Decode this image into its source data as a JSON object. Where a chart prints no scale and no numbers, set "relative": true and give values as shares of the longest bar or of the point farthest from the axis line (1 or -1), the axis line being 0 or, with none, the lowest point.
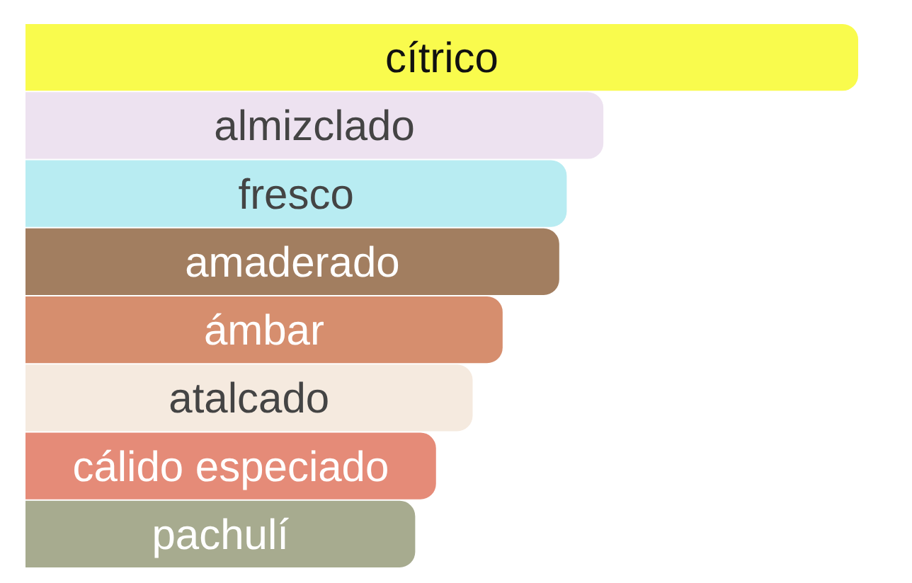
{
  "chart_data": {
    "type": "bar",
    "orientation": "horizontal",
    "relative": true,
    "categories": [
      "cítrico",
      "almizclado",
      "fresco",
      "amaderado",
      "ámbar",
      "atalcado",
      "cálido especiado",
      "pachulí"
    ],
    "values": [
      1,
      0.694,
      0.65,
      0.641,
      0.573,
      0.537,
      0.493,
      0.468
    ],
    "colors": [
      "#f9fb4d",
      "#ede2f0",
      "#b8ecf2",
      "#a27e60",
      "#d68e6e",
      "#f5eadf",
      "#e58b78",
      "#a7ab8f"
    ]
  }
}
